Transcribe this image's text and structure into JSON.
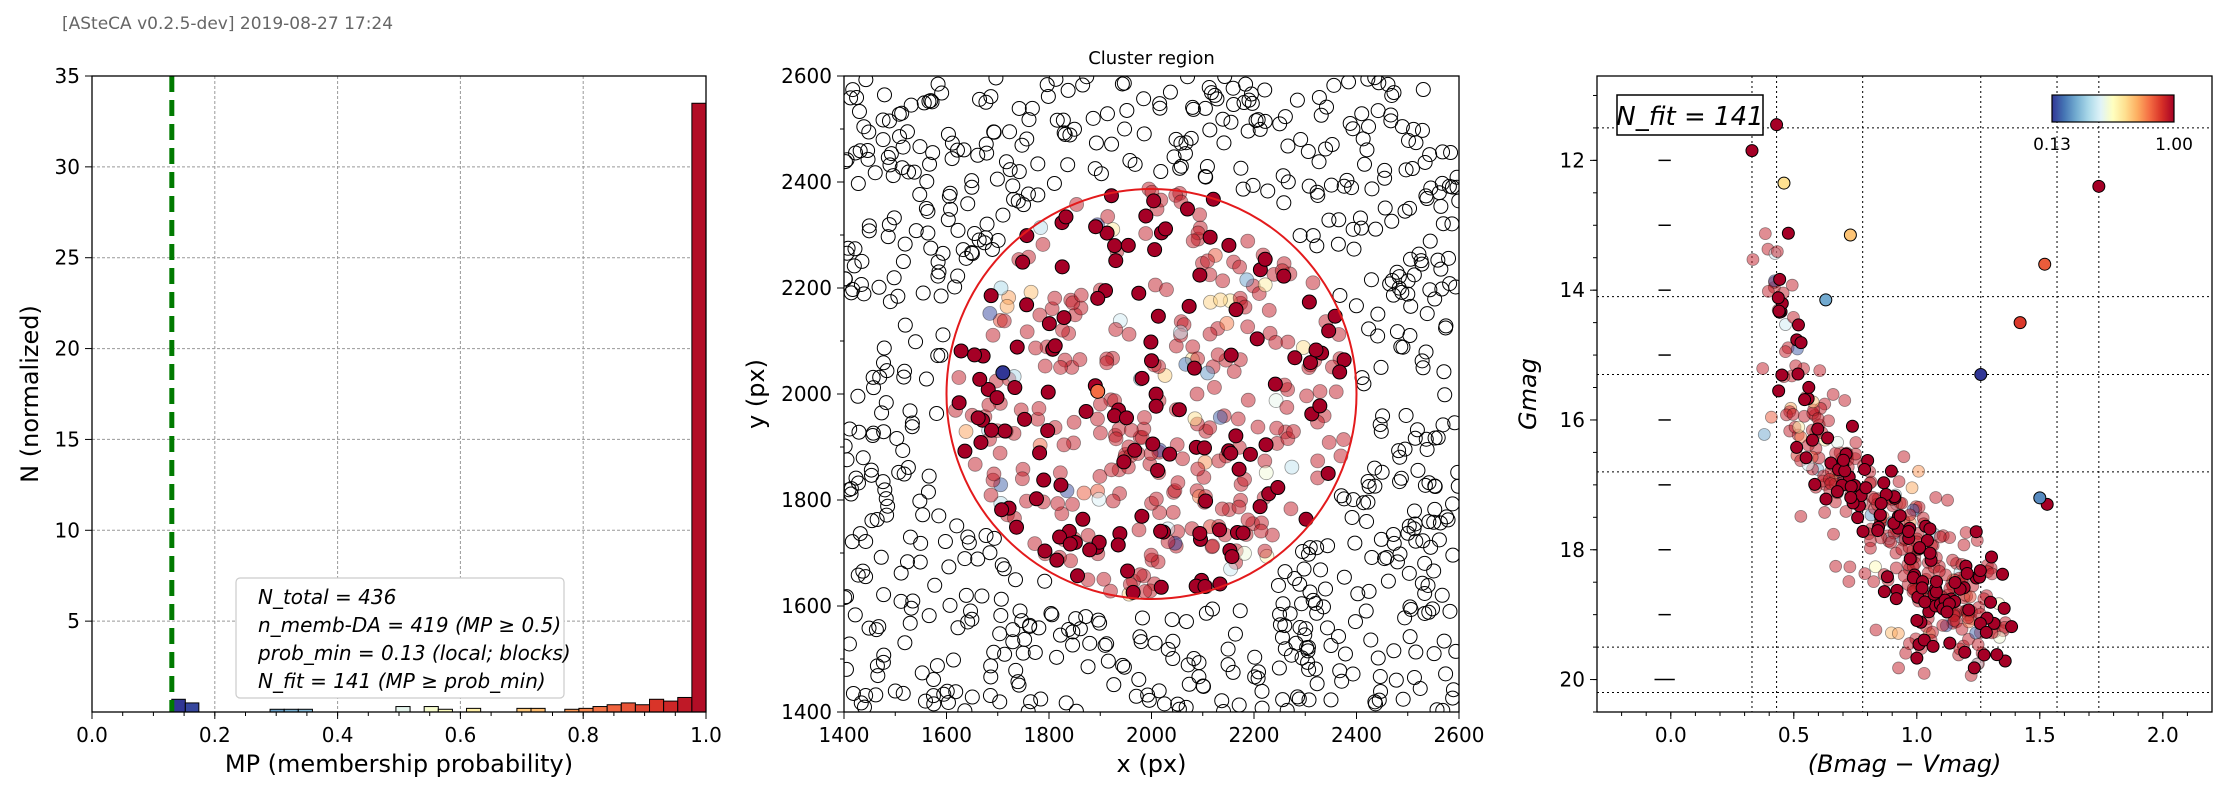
{
  "header": {
    "text": "[ASteCA v0.2.5-dev] 2019-08-27 17:24"
  },
  "colors": {
    "cmap": [
      "#313695",
      "#4575b4",
      "#74add1",
      "#abd9e9",
      "#e0f3f8",
      "#ffffbf",
      "#fee090",
      "#fdae61",
      "#f46d43",
      "#d73027",
      "#a50026"
    ],
    "member_alpha": "#c06070",
    "region_circle": "#e31a1c",
    "prob_line": "#007a00"
  },
  "chart_data": [
    {
      "type": "bar",
      "title": "",
      "xlabel": "MP (membership probability)",
      "ylabel": "N (normalized)",
      "xlim": [
        0.0,
        1.0
      ],
      "ylim": [
        0,
        35
      ],
      "xticks": [
        "0.0",
        "0.2",
        "0.4",
        "0.6",
        "0.8",
        "1.0"
      ],
      "yticks": [
        "5",
        "10",
        "15",
        "20",
        "25",
        "30",
        "35"
      ],
      "grid": true,
      "vline": {
        "x": 0.13,
        "style": "dashed",
        "color": "green"
      },
      "bins": [
        {
          "x0": 0.13,
          "x1": 0.152,
          "value": 0.7
        },
        {
          "x0": 0.152,
          "x1": 0.174,
          "value": 0.5
        },
        {
          "x0": 0.29,
          "x1": 0.313,
          "value": 0.15
        },
        {
          "x0": 0.313,
          "x1": 0.336,
          "value": 0.15
        },
        {
          "x0": 0.336,
          "x1": 0.359,
          "value": 0.15
        },
        {
          "x0": 0.495,
          "x1": 0.518,
          "value": 0.3
        },
        {
          "x0": 0.541,
          "x1": 0.564,
          "value": 0.3
        },
        {
          "x0": 0.564,
          "x1": 0.587,
          "value": 0.15
        },
        {
          "x0": 0.61,
          "x1": 0.633,
          "value": 0.2
        },
        {
          "x0": 0.692,
          "x1": 0.715,
          "value": 0.2
        },
        {
          "x0": 0.715,
          "x1": 0.738,
          "value": 0.2
        },
        {
          "x0": 0.77,
          "x1": 0.793,
          "value": 0.15
        },
        {
          "x0": 0.793,
          "x1": 0.816,
          "value": 0.2
        },
        {
          "x0": 0.816,
          "x1": 0.839,
          "value": 0.3
        },
        {
          "x0": 0.839,
          "x1": 0.862,
          "value": 0.4
        },
        {
          "x0": 0.862,
          "x1": 0.885,
          "value": 0.5
        },
        {
          "x0": 0.885,
          "x1": 0.908,
          "value": 0.4
        },
        {
          "x0": 0.908,
          "x1": 0.931,
          "value": 0.7
        },
        {
          "x0": 0.931,
          "x1": 0.954,
          "value": 0.6
        },
        {
          "x0": 0.954,
          "x1": 0.977,
          "value": 0.8
        },
        {
          "x0": 0.977,
          "x1": 1.0,
          "value": 33.5
        }
      ],
      "legend": {
        "placement": "bottom-center",
        "lines": [
          "N_total = 436",
          "n_memb-DA = 419 (MP ≥ 0.5)",
          "prob_min = 0.13 (local; blocks)",
          "N_fit = 141 (MP ≥ prob_min)"
        ]
      }
    },
    {
      "type": "scatter",
      "title": "Cluster region",
      "xlabel": "x (px)",
      "ylabel": "y (px)",
      "xlim": [
        1400,
        2600
      ],
      "ylim": [
        1400,
        2600
      ],
      "xticks": [
        "1400",
        "1600",
        "1800",
        "2000",
        "2200",
        "2400",
        "2600"
      ],
      "yticks": [
        "1400",
        "1600",
        "1800",
        "2000",
        "2200",
        "2400",
        "2600"
      ],
      "grid": false,
      "circle": {
        "center": [
          2000,
          2000
        ],
        "radius": 400
      },
      "field_stars_count_approx": 700,
      "members_count_approx": 436
    },
    {
      "type": "scatter",
      "title": "",
      "xlabel": "(Bmag − Vmag)",
      "ylabel": "Gmag",
      "xlim": [
        -0.3,
        2.2
      ],
      "ylim": [
        20.5,
        10.7
      ],
      "y_inverted": true,
      "xticks": [
        "0.0",
        "0.5",
        "1.0",
        "1.5",
        "2.0"
      ],
      "yticks": [
        "12",
        "14",
        "16",
        "18",
        "20"
      ],
      "grid": "irregular dotted",
      "vgrid_x": [
        0.33,
        0.43,
        0.78,
        1.26,
        1.57,
        1.74
      ],
      "hgrid_y": [
        11.5,
        14.1,
        15.3,
        16.8,
        19.5,
        20.2
      ],
      "annotation": "N_fit = 141",
      "colorbar": {
        "min_label": "0.13",
        "max_label": "1.00",
        "placement": "top-right"
      },
      "highlight_points": [
        {
          "x": 0.33,
          "y": 11.85,
          "mp": 1.0
        },
        {
          "x": 0.43,
          "y": 11.45,
          "mp": 1.0
        },
        {
          "x": 0.46,
          "y": 12.35,
          "mp": 0.65
        },
        {
          "x": 1.74,
          "y": 12.4,
          "mp": 1.0
        },
        {
          "x": 1.26,
          "y": 15.3,
          "mp": 0.13
        },
        {
          "x": 0.73,
          "y": 13.15,
          "mp": 0.7
        },
        {
          "x": 0.63,
          "y": 14.15,
          "mp": 0.3
        },
        {
          "x": 1.52,
          "y": 13.6,
          "mp": 0.85
        },
        {
          "x": 1.42,
          "y": 14.5,
          "mp": 0.9
        },
        {
          "x": 1.53,
          "y": 17.3,
          "mp": 1.0
        },
        {
          "x": 1.5,
          "y": 17.2,
          "mp": 0.25
        }
      ],
      "trend": [
        {
          "x": 0.38,
          "y": 12.5
        },
        {
          "x": 0.42,
          "y": 13.8
        },
        {
          "x": 0.48,
          "y": 15.0
        },
        {
          "x": 0.55,
          "y": 16.0
        },
        {
          "x": 0.65,
          "y": 16.6
        },
        {
          "x": 0.8,
          "y": 17.1
        },
        {
          "x": 0.95,
          "y": 17.7
        },
        {
          "x": 1.05,
          "y": 18.3
        },
        {
          "x": 1.12,
          "y": 18.9
        },
        {
          "x": 1.18,
          "y": 19.4
        }
      ]
    }
  ]
}
